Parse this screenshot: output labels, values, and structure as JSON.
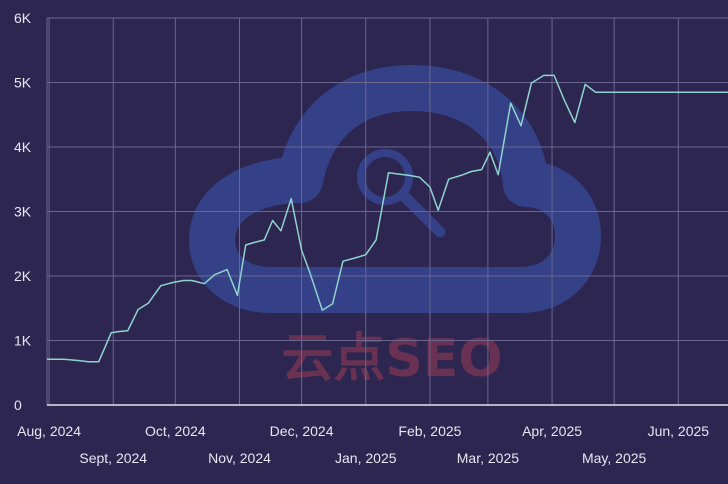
{
  "chart_data": {
    "type": "line",
    "title": "",
    "xlabel": "",
    "ylabel": "",
    "ylim": [
      0,
      6000
    ],
    "yticks": [
      0,
      1000,
      2000,
      3000,
      4000,
      5000,
      6000
    ],
    "ytick_labels": [
      "0",
      "1K",
      "2K",
      "3K",
      "4K",
      "5K",
      "6K"
    ],
    "xlim": [
      "2024-07-31",
      "2025-06-25"
    ],
    "xticks": [
      "2024-08-01",
      "2024-09-01",
      "2024-10-01",
      "2024-11-01",
      "2024-12-01",
      "2025-01-01",
      "2025-02-01",
      "2025-03-01",
      "2025-04-01",
      "2025-05-01",
      "2025-06-01"
    ],
    "xtick_labels": [
      "Aug, 2024",
      "Sept, 2024",
      "Oct, 2024",
      "Nov, 2024",
      "Dec, 2024",
      "Jan, 2025",
      "Feb, 2025",
      "Mar, 2025",
      "Apr, 2025",
      "May, 2025",
      "Jun, 2025"
    ],
    "grid": true,
    "line_color": "#8fd3cf",
    "series": [
      {
        "x": [
          "2024-07-31",
          "2024-08-08",
          "2024-08-15",
          "2024-08-20",
          "2024-08-25",
          "2024-08-31",
          "2024-09-04",
          "2024-09-08",
          "2024-09-13",
          "2024-09-18",
          "2024-09-24",
          "2024-09-30",
          "2024-10-05",
          "2024-10-09",
          "2024-10-15",
          "2024-10-20",
          "2024-10-26",
          "2024-10-31",
          "2024-11-04",
          "2024-11-08",
          "2024-11-13",
          "2024-11-17",
          "2024-11-21",
          "2024-11-26",
          "2024-12-01",
          "2024-12-05",
          "2024-12-11",
          "2024-12-16",
          "2024-12-21",
          "2024-12-27",
          "2025-01-01",
          "2025-01-06",
          "2025-01-12",
          "2025-01-17",
          "2025-01-22",
          "2025-01-27",
          "2025-02-01",
          "2025-02-05",
          "2025-02-10",
          "2025-02-16",
          "2025-02-21",
          "2025-02-26",
          "2025-03-02",
          "2025-03-06",
          "2025-03-12",
          "2025-03-17",
          "2025-03-22",
          "2025-03-28",
          "2025-04-02",
          "2025-04-07",
          "2025-04-12",
          "2025-04-17",
          "2025-04-22",
          "2025-04-27",
          "2025-05-01",
          "2025-05-06",
          "2025-05-11",
          "2025-05-15",
          "2025-05-20",
          "2025-05-25",
          "2025-05-30",
          "2025-06-04",
          "2025-06-10",
          "2025-06-15",
          "2025-06-20",
          "2025-06-25"
        ],
        "values": [
          710,
          710,
          690,
          670,
          670,
          1120,
          1140,
          1150,
          1480,
          1580,
          1850,
          1900,
          1930,
          1930,
          1880,
          2020,
          2100,
          1700,
          2480,
          2520,
          2560,
          2860,
          2700,
          3200,
          2400,
          2050,
          1470,
          1570,
          2230,
          2280,
          2330,
          2560,
          3600,
          3580,
          3560,
          3530,
          3380,
          3020,
          3500,
          3560,
          3620,
          3650,
          3920,
          3570,
          4680,
          4330,
          4990,
          5110,
          5110,
          4720,
          4380,
          4970,
          4850,
          4850,
          4850,
          4850,
          4850,
          4850,
          4850,
          4850,
          4850,
          4850,
          4850,
          4850,
          4850,
          4850
        ]
      }
    ]
  }
}
